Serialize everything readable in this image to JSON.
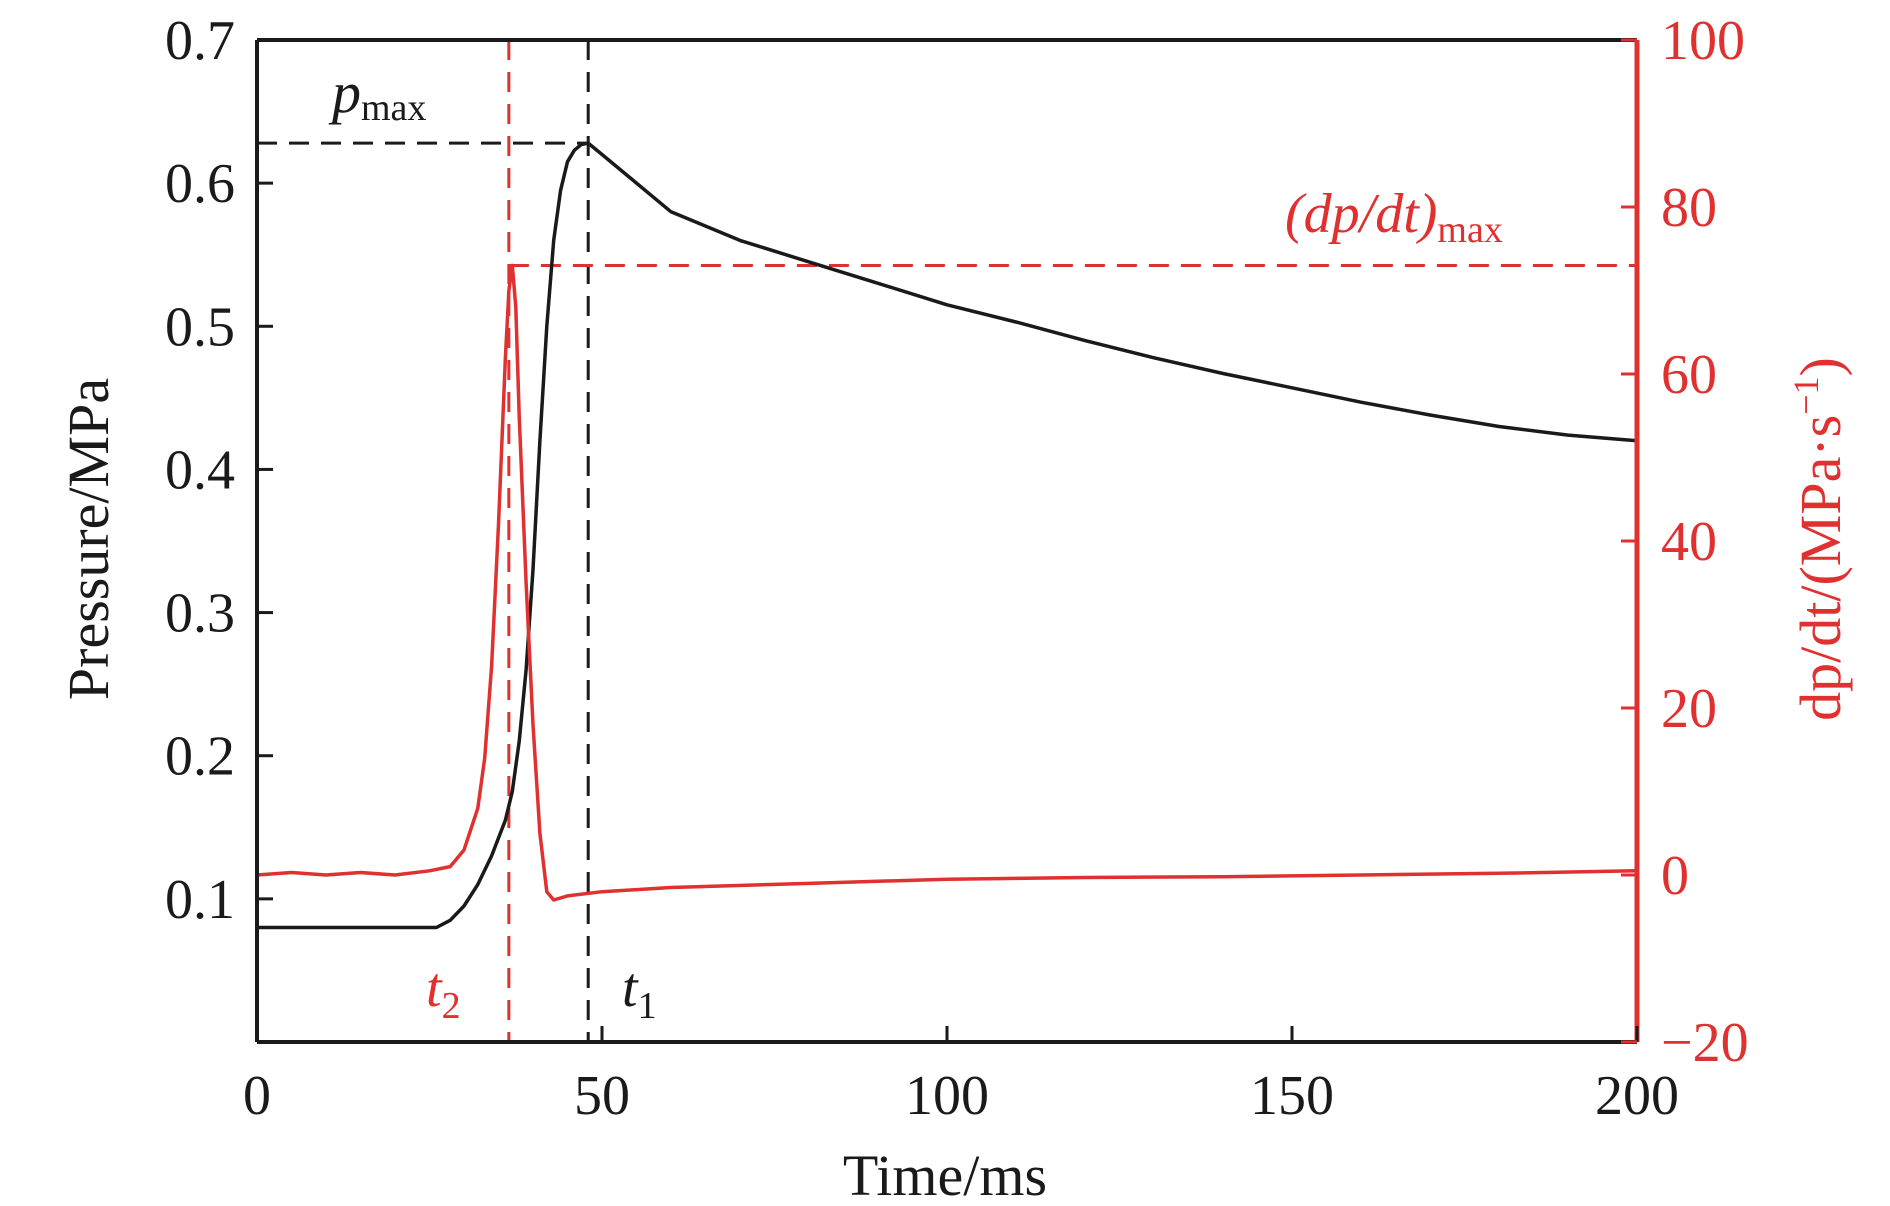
{
  "colors": {
    "pressure": "#1a1a1a",
    "rate": "#e03030",
    "axis_left": "#1a1a1a",
    "axis_right": "#e03030"
  },
  "chart_data": {
    "type": "line",
    "title": "",
    "xlabel": "Time/ms",
    "ylabel_left": "Pressure/MPa",
    "ylabel_right": {
      "prefix": "dp/dt/(MPa·s",
      "exp": "−1",
      "suffix": ")"
    },
    "xlim": [
      0,
      200
    ],
    "ylim_left": [
      0,
      0.7
    ],
    "ylim_right": [
      -20,
      100
    ],
    "x_ticks": [
      "0",
      "50",
      "100",
      "150",
      "200"
    ],
    "x_tick_values": [
      0,
      50,
      100,
      150,
      200
    ],
    "y_left_ticks": [
      "0.1",
      "0.2",
      "0.3",
      "0.4",
      "0.5",
      "0.6",
      "0.7"
    ],
    "y_left_tick_values": [
      0.1,
      0.2,
      0.3,
      0.4,
      0.5,
      0.6,
      0.7
    ],
    "y_right_ticks": [
      "−20",
      "0",
      "20",
      "40",
      "60",
      "80",
      "100"
    ],
    "y_right_tick_values": [
      -20,
      0,
      20,
      40,
      60,
      80,
      100
    ],
    "grid": false,
    "series": [
      {
        "axis": "left",
        "color": "#1a1a1a",
        "x": [
          0,
          10,
          20,
          26,
          28,
          30,
          32,
          34,
          36,
          37,
          38,
          39,
          40,
          41,
          42,
          43,
          44,
          45,
          46,
          47,
          48,
          50,
          55,
          60,
          70,
          80,
          90,
          100,
          110,
          120,
          130,
          140,
          150,
          160,
          170,
          180,
          190,
          200
        ],
        "y": [
          0.08,
          0.08,
          0.08,
          0.08,
          0.085,
          0.095,
          0.11,
          0.13,
          0.155,
          0.175,
          0.21,
          0.26,
          0.33,
          0.42,
          0.5,
          0.56,
          0.595,
          0.615,
          0.623,
          0.627,
          0.628,
          0.62,
          0.6,
          0.58,
          0.56,
          0.545,
          0.53,
          0.515,
          0.503,
          0.49,
          0.478,
          0.467,
          0.457,
          0.447,
          0.438,
          0.43,
          0.424,
          0.42
        ]
      },
      {
        "axis": "right",
        "color": "#e03030",
        "x": [
          0,
          5,
          10,
          15,
          20,
          25,
          28,
          30,
          32,
          33,
          34,
          35,
          36,
          36.5,
          37,
          37.5,
          38,
          39,
          40,
          41,
          42,
          43,
          45,
          50,
          60,
          80,
          100,
          120,
          140,
          160,
          180,
          200
        ],
        "y": [
          0,
          0.3,
          0,
          0.3,
          0,
          0.5,
          1,
          3,
          8,
          14,
          25,
          42,
          62,
          70,
          73,
          68,
          55,
          35,
          18,
          5,
          -2,
          -3,
          -2.5,
          -2,
          -1.5,
          -1,
          -0.5,
          -0.3,
          -0.2,
          0,
          0.2,
          0.5
        ]
      }
    ],
    "reference_lines": [
      {
        "kind": "horizontal",
        "axis": "left",
        "y": 0.628,
        "x_from": 0,
        "x_to": 48,
        "color": "#1a1a1a"
      },
      {
        "kind": "vertical",
        "x": 48,
        "color": "#1a1a1a"
      },
      {
        "kind": "horizontal",
        "axis": "right",
        "y": 73,
        "x_from": 36.5,
        "x_to": 200,
        "color": "#e03030"
      },
      {
        "kind": "vertical",
        "x": 36.5,
        "color": "#e03030"
      }
    ],
    "annotations": {
      "pmax": {
        "main": "p",
        "sub": "max"
      },
      "dpdt_max": {
        "main": "(dp/dt)",
        "sub": "max"
      },
      "t1": {
        "main": "t",
        "sub": "1"
      },
      "t2": {
        "main": "t",
        "sub": "2"
      }
    }
  }
}
